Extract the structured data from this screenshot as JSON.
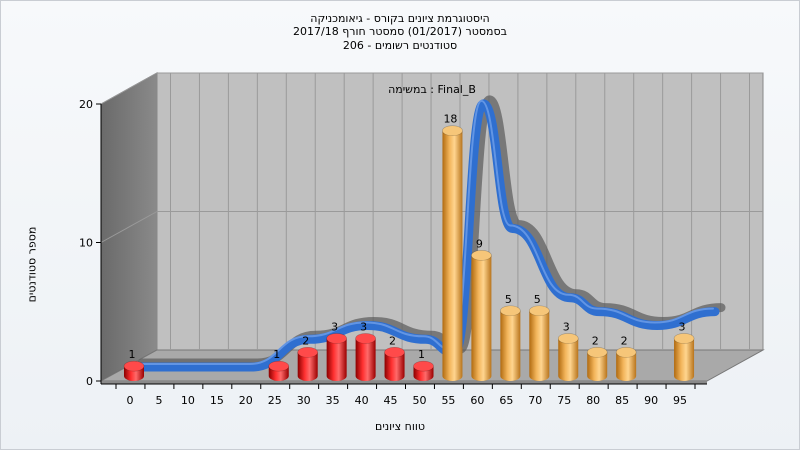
{
  "chart_data": {
    "type": "bar",
    "title_lines": [
      "היסטוגרמת ציונים בקורס - גיאומכניקה",
      "בסמסטר  (01/2017)  סמסטר חורף 2017/18",
      "סטודנטים רשומים - 206"
    ],
    "subtitle": "במשימה : Final_B",
    "xlabel": "טווח ציונים",
    "ylabel": "מספר סטודנטים",
    "ylim": [
      0,
      20
    ],
    "y_ticks": [
      0,
      10,
      20
    ],
    "x_ticks": [
      0,
      5,
      10,
      15,
      20,
      25,
      30,
      35,
      40,
      45,
      50,
      55,
      60,
      65,
      70,
      75,
      80,
      85,
      90,
      95
    ],
    "series": [
      {
        "color": "#e01010",
        "points": [
          {
            "x": 0,
            "y": 1
          },
          {
            "x": 25,
            "y": 1
          },
          {
            "x": 30,
            "y": 2
          },
          {
            "x": 35,
            "y": 3
          },
          {
            "x": 40,
            "y": 3
          },
          {
            "x": 45,
            "y": 2
          },
          {
            "x": 50,
            "y": 1
          }
        ]
      },
      {
        "color": "#e8a040",
        "points": [
          {
            "x": 55,
            "y": 18
          },
          {
            "x": 60,
            "y": 9
          },
          {
            "x": 65,
            "y": 5
          },
          {
            "x": 70,
            "y": 5
          },
          {
            "x": 75,
            "y": 3
          },
          {
            "x": 80,
            "y": 2
          },
          {
            "x": 85,
            "y": 2
          },
          {
            "x": 95,
            "y": 3
          }
        ]
      }
    ],
    "curve": {
      "color": "#2f6fd0",
      "points": [
        {
          "x": 0,
          "y": 0
        },
        {
          "x": 20,
          "y": 0
        },
        {
          "x": 30,
          "y": 2
        },
        {
          "x": 40,
          "y": 3
        },
        {
          "x": 50,
          "y": 2
        },
        {
          "x": 55,
          "y": 1
        },
        {
          "x": 60,
          "y": 19
        },
        {
          "x": 65,
          "y": 10
        },
        {
          "x": 75,
          "y": 5
        },
        {
          "x": 80,
          "y": 4
        },
        {
          "x": 90,
          "y": 3
        },
        {
          "x": 100,
          "y": 4
        }
      ]
    },
    "grid": true,
    "background_color": "#c0c0c0",
    "wall_color": "#7f7f7f"
  }
}
